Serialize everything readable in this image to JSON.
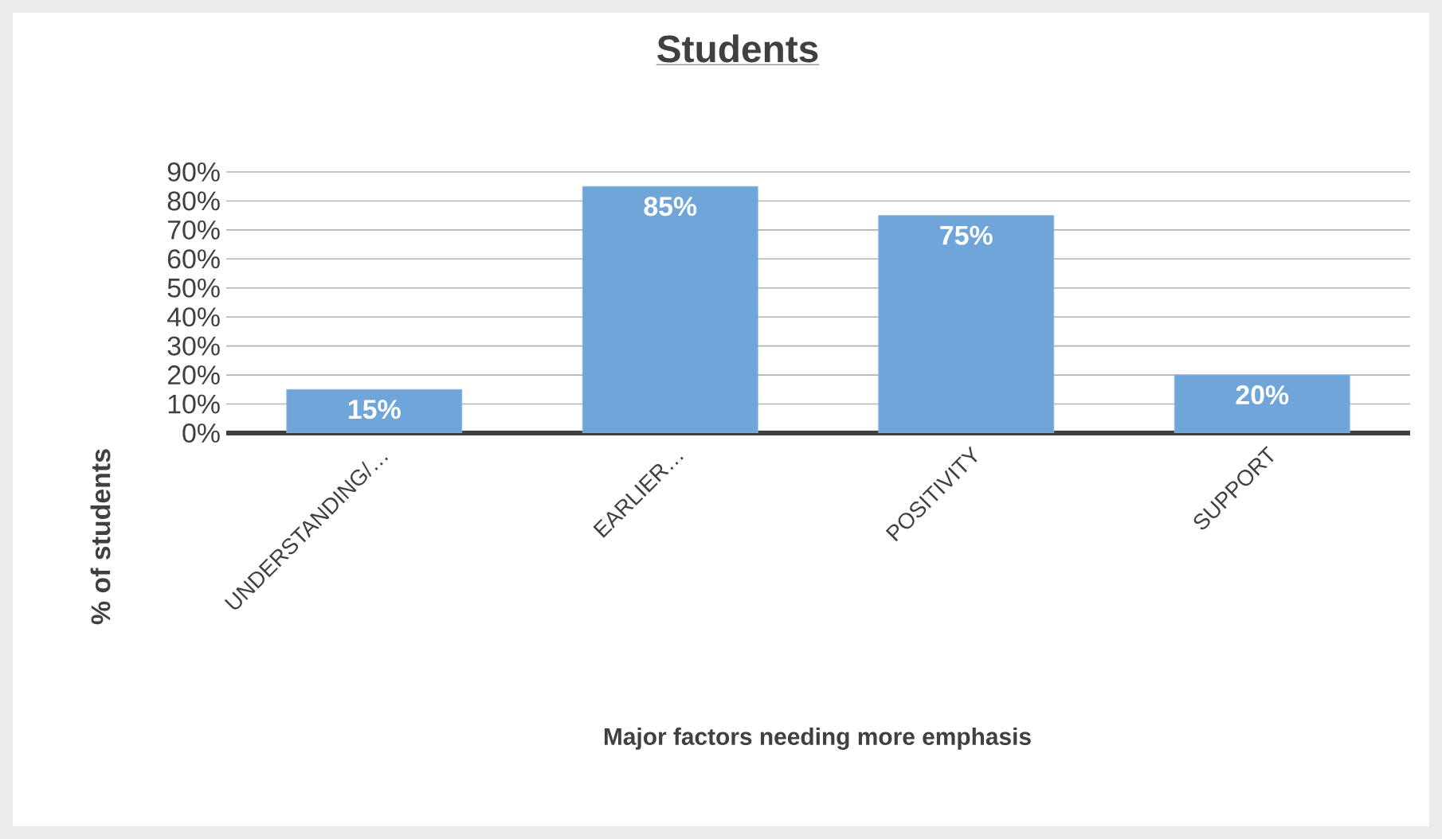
{
  "chart_data": {
    "type": "bar",
    "title": "Students",
    "xlabel": "Major factors needing more emphasis",
    "ylabel": "% of  students",
    "categories": [
      "UNDERSTANDING/…",
      "EARLIER…",
      "POSITIVITY",
      "SUPPORT"
    ],
    "values": [
      15,
      85,
      75,
      20
    ],
    "color": "#6fa5d9",
    "value_labels": [
      "15%",
      "85%",
      "75%",
      "20%"
    ],
    "ylim": [
      0,
      90
    ],
    "yticks": [
      {
        "value": 0,
        "label": "0%"
      },
      {
        "value": 10,
        "label": "10%"
      },
      {
        "value": 20,
        "label": "20%"
      },
      {
        "value": 30,
        "label": "30%"
      },
      {
        "value": 40,
        "label": "40%"
      },
      {
        "value": 50,
        "label": "50%"
      },
      {
        "value": 60,
        "label": "60%"
      },
      {
        "value": 70,
        "label": "70%"
      },
      {
        "value": 80,
        "label": "80%"
      },
      {
        "value": 90,
        "label": "90%"
      }
    ],
    "grid": "y"
  }
}
